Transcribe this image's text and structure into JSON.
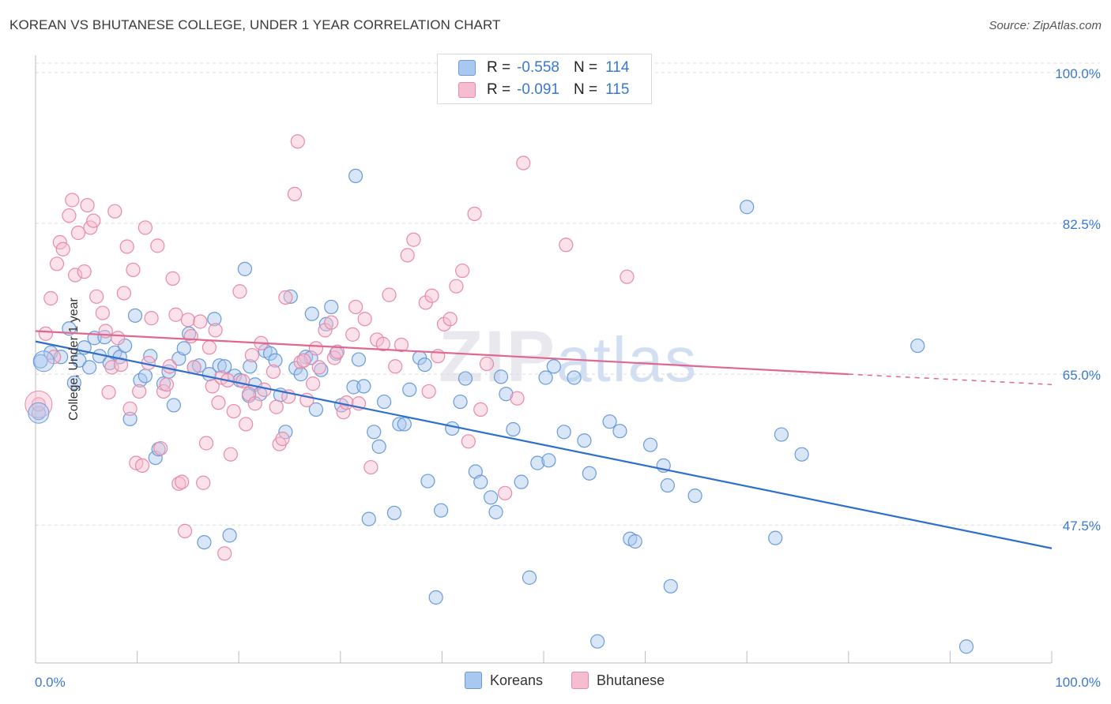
{
  "title": "KOREAN VS BHUTANESE COLLEGE, UNDER 1 YEAR CORRELATION CHART",
  "source": "Source: ZipAtlas.com",
  "watermark": {
    "zip": "ZIP",
    "atlas": "atlas"
  },
  "legend": {
    "korean": {
      "r_label": "R =",
      "r_value": "-0.558",
      "n_label": "N =",
      "n_value": "114"
    },
    "bhutanese": {
      "r_label": "R =",
      "r_value": "-0.091",
      "n_label": "N =",
      "n_value": "115"
    }
  },
  "bottom_legend": {
    "korean": "Koreans",
    "bhutanese": "Bhutanese"
  },
  "colors": {
    "korean_fill": "#a9c8f0",
    "korean_stroke": "#6a9bd8",
    "korean_line": "#2f6fcc",
    "bhutanese_fill": "#f6bccf",
    "bhutanese_stroke": "#e88aa8",
    "bhutanese_line": "#e0678f",
    "axis_text": "#3a78d0",
    "grid": "#dcdcdc"
  },
  "chart_data": {
    "type": "scatter",
    "title": "KOREAN VS BHUTANESE COLLEGE, UNDER 1 YEAR CORRELATION CHART",
    "xlabel": "",
    "ylabel": "College, Under 1 year",
    "xlim": [
      0,
      100
    ],
    "ylim": [
      31.5,
      102
    ],
    "x_tick_labels": [
      "0.0%",
      "100.0%"
    ],
    "y_ticks": [
      47.5,
      65.0,
      82.5,
      100.0
    ],
    "y_tick_labels": [
      "47.5%",
      "65.0%",
      "82.5%",
      "100.0%"
    ],
    "grid": true,
    "legend_position": "top-center",
    "series": [
      {
        "name": "Koreans",
        "trend": {
          "x": [
            0,
            100
          ],
          "y": [
            68.8,
            44.8
          ]
        },
        "points": [
          [
            0.5,
            66.5
          ],
          [
            0.3,
            60.5
          ],
          [
            1.5,
            67.5
          ],
          [
            2.5,
            67.0
          ],
          [
            3.3,
            70.3
          ],
          [
            3.8,
            64.0
          ],
          [
            4.3,
            66.6
          ],
          [
            4.8,
            68.1
          ],
          [
            5.3,
            65.8
          ],
          [
            5.8,
            69.2
          ],
          [
            6.3,
            67.1
          ],
          [
            6.8,
            69.3
          ],
          [
            7.3,
            66.3
          ],
          [
            7.8,
            67.5
          ],
          [
            8.3,
            67.0
          ],
          [
            8.8,
            68.3
          ],
          [
            9.3,
            59.8
          ],
          [
            9.8,
            71.8
          ],
          [
            10.3,
            64.3
          ],
          [
            10.8,
            64.8
          ],
          [
            11.3,
            67.1
          ],
          [
            11.8,
            55.3
          ],
          [
            12.1,
            56.3
          ],
          [
            12.6,
            63.9
          ],
          [
            13.1,
            65.3
          ],
          [
            13.6,
            61.4
          ],
          [
            14.1,
            66.8
          ],
          [
            14.6,
            68.0
          ],
          [
            15.1,
            69.7
          ],
          [
            15.6,
            65.8
          ],
          [
            16.1,
            66.0
          ],
          [
            16.6,
            45.5
          ],
          [
            17.1,
            65.0
          ],
          [
            17.6,
            71.4
          ],
          [
            18.1,
            66.0
          ],
          [
            18.6,
            65.9
          ],
          [
            19.1,
            46.3
          ],
          [
            19.6,
            64.8
          ],
          [
            20.1,
            64.3
          ],
          [
            20.6,
            77.2
          ],
          [
            21.1,
            65.9
          ],
          [
            21.6,
            63.8
          ],
          [
            22.1,
            62.7
          ],
          [
            22.6,
            67.7
          ],
          [
            23.1,
            67.4
          ],
          [
            23.6,
            66.6
          ],
          [
            24.1,
            62.6
          ],
          [
            24.6,
            58.3
          ],
          [
            25.1,
            74.0
          ],
          [
            25.6,
            65.7
          ],
          [
            26.1,
            65.0
          ],
          [
            26.6,
            67.0
          ],
          [
            27.1,
            66.9
          ],
          [
            27.6,
            60.9
          ],
          [
            28.1,
            65.5
          ],
          [
            28.6,
            70.8
          ],
          [
            29.1,
            72.8
          ],
          [
            29.6,
            67.4
          ],
          [
            30.1,
            61.4
          ],
          [
            31.3,
            63.5
          ],
          [
            31.8,
            66.7
          ],
          [
            32.3,
            63.6
          ],
          [
            32.8,
            48.2
          ],
          [
            33.3,
            58.3
          ],
          [
            33.8,
            56.6
          ],
          [
            34.3,
            61.8
          ],
          [
            35.3,
            48.9
          ],
          [
            35.8,
            59.2
          ],
          [
            36.3,
            59.2
          ],
          [
            36.8,
            63.2
          ],
          [
            37.8,
            66.9
          ],
          [
            38.3,
            66.1
          ],
          [
            38.6,
            52.6
          ],
          [
            39.4,
            39.1
          ],
          [
            39.9,
            49.2
          ],
          [
            41.0,
            58.7
          ],
          [
            41.8,
            61.8
          ],
          [
            42.3,
            64.5
          ],
          [
            43.3,
            53.7
          ],
          [
            43.8,
            52.5
          ],
          [
            44.8,
            50.7
          ],
          [
            45.3,
            49.0
          ],
          [
            45.8,
            64.7
          ],
          [
            46.3,
            62.7
          ],
          [
            47.0,
            58.6
          ],
          [
            47.8,
            52.5
          ],
          [
            48.6,
            41.4
          ],
          [
            49.4,
            54.7
          ],
          [
            50.2,
            64.6
          ],
          [
            51.0,
            65.9
          ],
          [
            52.0,
            58.3
          ],
          [
            53.0,
            64.6
          ],
          [
            54.0,
            57.3
          ],
          [
            54.5,
            53.5
          ],
          [
            55.3,
            34.0
          ],
          [
            56.5,
            59.5
          ],
          [
            57.5,
            58.4
          ],
          [
            58.5,
            45.9
          ],
          [
            59.0,
            45.6
          ],
          [
            60.5,
            56.8
          ],
          [
            61.8,
            54.4
          ],
          [
            62.5,
            40.4
          ],
          [
            62.2,
            52.1
          ],
          [
            64.9,
            50.9
          ],
          [
            72.8,
            46.0
          ],
          [
            73.4,
            58.0
          ],
          [
            75.4,
            55.7
          ],
          [
            86.8,
            68.3
          ],
          [
            91.6,
            33.4
          ],
          [
            70.0,
            84.4
          ],
          [
            31.5,
            88.0
          ],
          [
            27.2,
            72.0
          ],
          [
            21.0,
            62.5
          ],
          [
            50.5,
            55.0
          ]
        ]
      },
      {
        "name": "Bhutanese",
        "trend": {
          "x": [
            0,
            80
          ],
          "y": [
            70.0,
            65.0
          ],
          "dash_to": [
            100,
            63.8
          ]
        },
        "points": [
          [
            0.3,
            61.5
          ],
          [
            1.0,
            69.7
          ],
          [
            1.5,
            73.8
          ],
          [
            1.8,
            67.0
          ],
          [
            2.1,
            77.8
          ],
          [
            2.4,
            80.3
          ],
          [
            2.7,
            79.5
          ],
          [
            3.3,
            83.4
          ],
          [
            3.6,
            85.2
          ],
          [
            3.9,
            76.5
          ],
          [
            4.2,
            81.4
          ],
          [
            4.8,
            76.9
          ],
          [
            5.1,
            84.6
          ],
          [
            5.4,
            82.0
          ],
          [
            5.7,
            82.8
          ],
          [
            6.0,
            74.0
          ],
          [
            6.6,
            72.1
          ],
          [
            6.9,
            70.0
          ],
          [
            7.2,
            62.9
          ],
          [
            7.5,
            65.8
          ],
          [
            7.8,
            83.9
          ],
          [
            8.1,
            69.2
          ],
          [
            8.4,
            66.1
          ],
          [
            8.7,
            74.4
          ],
          [
            9.0,
            79.8
          ],
          [
            9.3,
            61.0
          ],
          [
            9.6,
            77.1
          ],
          [
            9.9,
            54.7
          ],
          [
            10.2,
            63.0
          ],
          [
            10.5,
            54.4
          ],
          [
            10.8,
            82.0
          ],
          [
            11.1,
            66.3
          ],
          [
            11.4,
            71.5
          ],
          [
            12.0,
            79.9
          ],
          [
            12.3,
            56.4
          ],
          [
            12.6,
            63.0
          ],
          [
            12.9,
            63.8
          ],
          [
            13.2,
            65.9
          ],
          [
            13.5,
            76.1
          ],
          [
            13.8,
            71.9
          ],
          [
            14.1,
            52.3
          ],
          [
            14.4,
            52.5
          ],
          [
            14.7,
            46.8
          ],
          [
            15.0,
            71.3
          ],
          [
            15.3,
            69.4
          ],
          [
            15.6,
            65.8
          ],
          [
            16.2,
            71.1
          ],
          [
            16.5,
            52.4
          ],
          [
            16.8,
            57.0
          ],
          [
            17.1,
            68.1
          ],
          [
            17.4,
            63.6
          ],
          [
            17.7,
            70.1
          ],
          [
            18.0,
            61.7
          ],
          [
            18.3,
            64.6
          ],
          [
            18.6,
            44.2
          ],
          [
            18.9,
            64.3
          ],
          [
            19.2,
            55.7
          ],
          [
            19.5,
            60.7
          ],
          [
            20.1,
            74.6
          ],
          [
            20.4,
            64.2
          ],
          [
            20.7,
            59.2
          ],
          [
            21.0,
            62.7
          ],
          [
            21.3,
            67.2
          ],
          [
            21.6,
            61.6
          ],
          [
            22.2,
            68.6
          ],
          [
            22.5,
            63.2
          ],
          [
            23.4,
            65.3
          ],
          [
            23.7,
            61.2
          ],
          [
            24.0,
            56.9
          ],
          [
            24.3,
            57.5
          ],
          [
            24.6,
            73.9
          ],
          [
            24.9,
            62.4
          ],
          [
            25.5,
            85.9
          ],
          [
            25.8,
            92.0
          ],
          [
            26.1,
            66.4
          ],
          [
            26.4,
            66.6
          ],
          [
            26.7,
            62.0
          ],
          [
            27.3,
            63.9
          ],
          [
            27.6,
            68.0
          ],
          [
            27.9,
            65.8
          ],
          [
            28.5,
            70.1
          ],
          [
            29.1,
            71.0
          ],
          [
            29.4,
            66.9
          ],
          [
            29.7,
            67.6
          ],
          [
            30.3,
            60.6
          ],
          [
            30.6,
            61.7
          ],
          [
            31.2,
            69.6
          ],
          [
            31.5,
            72.8
          ],
          [
            31.8,
            61.6
          ],
          [
            32.4,
            71.4
          ],
          [
            33.0,
            54.2
          ],
          [
            33.6,
            69.0
          ],
          [
            34.2,
            68.5
          ],
          [
            34.8,
            74.2
          ],
          [
            35.4,
            65.9
          ],
          [
            36.0,
            68.4
          ],
          [
            36.6,
            78.8
          ],
          [
            37.2,
            80.6
          ],
          [
            38.4,
            73.3
          ],
          [
            38.7,
            63.0
          ],
          [
            39.0,
            74.1
          ],
          [
            39.6,
            67.1
          ],
          [
            40.2,
            70.8
          ],
          [
            40.8,
            71.4
          ],
          [
            41.4,
            75.2
          ],
          [
            42.0,
            77.0
          ],
          [
            42.6,
            57.2
          ],
          [
            43.2,
            83.6
          ],
          [
            43.8,
            60.9
          ],
          [
            44.4,
            66.2
          ],
          [
            46.2,
            51.2
          ],
          [
            47.4,
            62.2
          ],
          [
            48.0,
            89.5
          ],
          [
            52.2,
            80.0
          ],
          [
            58.2,
            76.3
          ]
        ]
      }
    ]
  }
}
